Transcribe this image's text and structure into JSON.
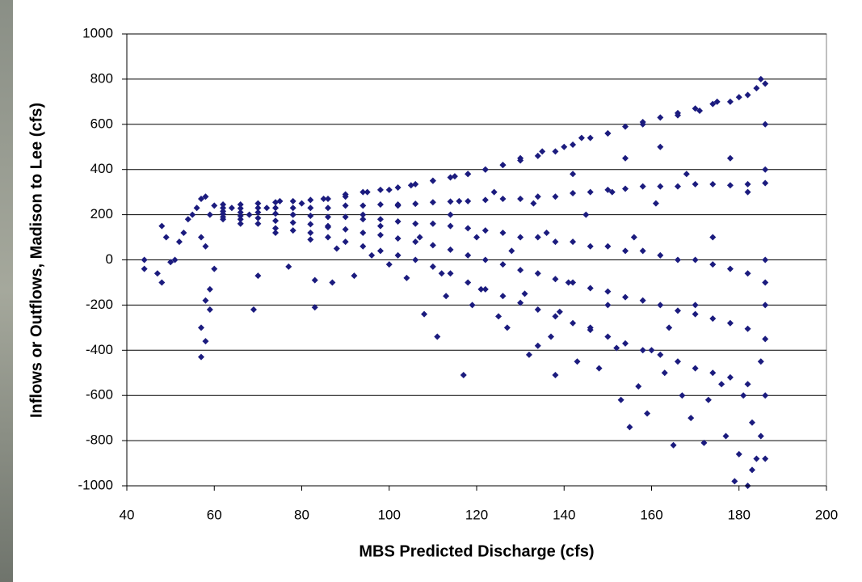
{
  "chart_data": {
    "type": "scatter",
    "x_label": "MBS Predicted Discharge (cfs)",
    "y_label": "Inflows or Outflows, Madison to Lee (cfs)",
    "color": "#1b1b7e",
    "grid": true,
    "xlim": [
      40,
      200
    ],
    "xticks": [
      40,
      60,
      80,
      100,
      120,
      140,
      160,
      180,
      200
    ],
    "ylim": [
      -1000,
      1000
    ],
    "yticks": [
      -1000,
      -800,
      -600,
      -400,
      -200,
      0,
      200,
      400,
      600,
      800,
      1000
    ],
    "x": [
      44,
      44,
      47,
      48,
      48,
      49,
      50,
      51,
      52,
      53,
      54,
      55,
      56,
      57,
      57,
      57,
      58,
      58,
      59,
      59,
      60,
      57,
      58,
      60,
      58,
      59,
      62,
      64,
      66,
      68,
      69,
      70,
      72,
      74,
      75,
      77,
      78,
      80,
      82,
      83,
      83,
      85,
      86,
      87,
      88,
      90,
      92,
      94,
      95,
      96,
      98,
      100,
      100,
      102,
      104,
      105,
      107,
      108,
      110,
      111,
      112,
      113,
      114,
      115,
      116,
      117,
      118,
      119,
      120,
      121,
      122,
      124,
      125,
      126,
      127,
      128,
      130,
      131,
      132,
      133,
      134,
      135,
      136,
      137,
      138,
      139,
      140,
      141,
      142,
      143,
      144,
      145,
      146,
      148,
      150,
      150,
      151,
      152,
      153,
      154,
      155,
      156,
      157,
      158,
      159,
      160,
      161,
      162,
      163,
      164,
      165,
      166,
      167,
      168,
      169,
      170,
      171,
      172,
      173,
      174,
      175,
      176,
      177,
      178,
      179,
      180,
      180,
      181,
      182,
      182,
      183,
      183,
      184,
      184,
      185,
      185,
      185,
      186,
      186,
      186,
      186,
      186,
      62,
      66,
      70,
      74,
      78,
      82,
      86,
      90,
      94,
      98,
      102,
      106,
      110,
      114,
      118,
      122,
      126,
      130,
      134,
      138,
      142,
      146,
      150,
      154,
      158,
      162,
      166,
      170,
      174,
      178,
      182,
      186,
      62,
      66,
      70,
      74,
      78,
      82,
      86,
      90,
      94,
      98,
      102,
      106,
      110,
      114,
      118,
      122,
      126,
      130,
      134,
      138,
      142,
      146,
      150,
      154,
      158,
      162,
      166,
      170,
      174,
      178,
      182,
      186,
      62,
      66,
      70,
      74,
      78,
      82,
      86,
      90,
      94,
      98,
      102,
      106,
      110,
      114,
      118,
      122,
      126,
      130,
      134,
      138,
      142,
      146,
      150,
      154,
      158,
      162,
      166,
      170,
      174,
      178,
      182,
      186,
      62,
      66,
      70,
      74,
      78,
      82,
      86,
      90,
      94,
      98,
      102,
      106,
      110,
      114,
      118,
      122,
      126,
      130,
      134,
      138,
      142,
      146,
      150,
      154,
      158,
      162,
      166,
      170,
      174,
      178,
      182,
      186,
      62,
      66,
      70,
      74,
      78,
      82,
      86,
      90,
      94,
      98,
      102,
      106,
      110,
      114,
      118,
      122,
      126,
      130,
      134,
      138,
      142,
      146,
      150,
      154,
      158,
      162,
      166,
      170,
      174,
      178,
      182,
      186
    ],
    "y": [
      -40,
      0,
      -60,
      -100,
      150,
      100,
      -10,
      0,
      80,
      120,
      180,
      200,
      230,
      270,
      -430,
      -300,
      -360,
      -180,
      -220,
      -130,
      -40,
      100,
      60,
      240,
      280,
      200,
      180,
      230,
      160,
      200,
      -220,
      -70,
      230,
      120,
      260,
      -30,
      200,
      250,
      90,
      -210,
      -90,
      270,
      150,
      -100,
      50,
      280,
      -70,
      200,
      300,
      20,
      150,
      310,
      -20,
      240,
      -80,
      330,
      100,
      -240,
      350,
      -340,
      -60,
      -160,
      200,
      370,
      260,
      -510,
      380,
      -200,
      100,
      -130,
      400,
      300,
      -250,
      420,
      -300,
      40,
      450,
      -150,
      -420,
      250,
      -380,
      480,
      120,
      -340,
      -510,
      -230,
      500,
      -100,
      380,
      -450,
      540,
      200,
      -300,
      -480,
      560,
      -200,
      300,
      -390,
      -620,
      450,
      -740,
      100,
      -560,
      600,
      -680,
      -400,
      250,
      500,
      -500,
      -300,
      -820,
      640,
      -600,
      380,
      -700,
      -200,
      660,
      -810,
      -620,
      100,
      700,
      -550,
      -780,
      450,
      -980,
      -860,
      720,
      -600,
      -1000,
      300,
      -930,
      -720,
      760,
      -880,
      800,
      -780,
      -450,
      -880,
      600,
      -200,
      0,
      400,
      245,
      245,
      250,
      255,
      260,
      265,
      270,
      290,
      300,
      310,
      320,
      335,
      350,
      365,
      380,
      400,
      420,
      440,
      460,
      480,
      510,
      540,
      560,
      590,
      610,
      630,
      650,
      670,
      690,
      700,
      730,
      780,
      230,
      228,
      230,
      230,
      230,
      230,
      230,
      240,
      240,
      245,
      245,
      248,
      255,
      258,
      260,
      265,
      270,
      270,
      280,
      280,
      295,
      300,
      310,
      315,
      325,
      325,
      325,
      335,
      335,
      330,
      335,
      340,
      215,
      210,
      210,
      205,
      200,
      195,
      190,
      190,
      180,
      180,
      170,
      160,
      160,
      150,
      140,
      130,
      120,
      100,
      100,
      80,
      80,
      60,
      60,
      40,
      40,
      20,
      0,
      0,
      -20,
      -40,
      -60,
      -100,
      203,
      195,
      185,
      173,
      165,
      158,
      145,
      135,
      120,
      110,
      95,
      80,
      65,
      45,
      20,
      0,
      -20,
      -45,
      -60,
      -85,
      -100,
      -125,
      -140,
      -165,
      -180,
      -200,
      -225,
      -240,
      -260,
      -280,
      -305,
      -350,
      190,
      180,
      160,
      140,
      130,
      120,
      100,
      80,
      60,
      40,
      20,
      0,
      -30,
      -60,
      -100,
      -130,
      -160,
      -190,
      -220,
      -250,
      -280,
      -310,
      -340,
      -370,
      -400,
      -420,
      -450,
      -480,
      -500,
      -520,
      -550,
      -600
    ]
  }
}
